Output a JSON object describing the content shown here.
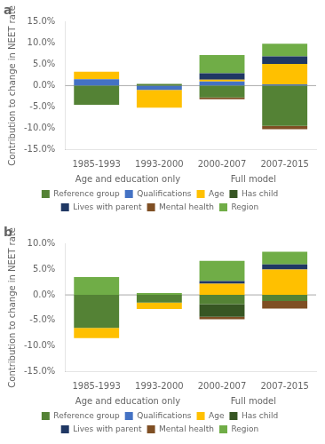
{
  "chart_data": [
    {
      "type": "bar",
      "title": "a",
      "stacked": true,
      "grid": false,
      "legend": "bottom",
      "ylabel": "Contribution to change in NEET rate",
      "categories": [
        "1985-1993",
        "1993-2000",
        "2000-2007",
        "2007-2015"
      ],
      "ylim": [
        -15.0,
        15.0
      ],
      "yticks": [
        {
          "value": -15.0,
          "label": "-15.0%"
        },
        {
          "value": -10.0,
          "label": "-10.0%"
        },
        {
          "value": -5.0,
          "label": "-5.0%"
        },
        {
          "value": 0.0,
          "label": "0.0%"
        },
        {
          "value": 5.0,
          "label": "5.0%"
        },
        {
          "value": 10.0,
          "label": "10.0%"
        },
        {
          "value": 15.0,
          "label": "15.0%"
        }
      ],
      "annotations": [
        {
          "text": "Age and education only",
          "categories": [
            "1985-1993",
            "1993-2000"
          ]
        },
        {
          "text": "Full model",
          "categories": [
            "2000-2007",
            "2007-2015"
          ]
        }
      ],
      "series": [
        {
          "name": "Reference group",
          "color": "#548235",
          "values": [
            -4.5,
            0.4,
            -2.8,
            -9.5
          ]
        },
        {
          "name": "Qualifications",
          "color": "#4472c4",
          "values": [
            1.5,
            -1.0,
            1.0,
            0.3
          ]
        },
        {
          "name": "Age",
          "color": "#ffc000",
          "values": [
            1.8,
            -4.2,
            0.4,
            4.8
          ]
        },
        {
          "name": "Has child",
          "color": "#375623",
          "values": [
            0,
            0,
            0,
            0
          ]
        },
        {
          "name": "Lives with parent",
          "color": "#203864",
          "values": [
            0,
            0,
            1.5,
            1.8
          ]
        },
        {
          "name": "Mental health",
          "color": "#7f4f24",
          "values": [
            0,
            0,
            -0.4,
            -0.8
          ]
        },
        {
          "name": "Region",
          "color": "#70ad47",
          "values": [
            0,
            0,
            4.3,
            3.0
          ]
        }
      ]
    },
    {
      "type": "bar",
      "title": "b",
      "stacked": true,
      "grid": false,
      "legend": "bottom",
      "ylabel": "Contribution to change in NEET rate",
      "categories": [
        "1985-1993",
        "1993-2000",
        "2000-2007",
        "2007-2015"
      ],
      "ylim": [
        -15.0,
        10.0
      ],
      "yticks": [
        {
          "value": -15.0,
          "label": "-15.0%"
        },
        {
          "value": -10.0,
          "label": "-10.0%"
        },
        {
          "value": -5.0,
          "label": "-5.0%"
        },
        {
          "value": 0.0,
          "label": "0.0%"
        },
        {
          "value": 5.0,
          "label": "5.0%"
        },
        {
          "value": 10.0,
          "label": "10.0%"
        }
      ],
      "annotations": [
        {
          "text": "Age and education only",
          "categories": [
            "1985-1993",
            "1993-2000"
          ]
        },
        {
          "text": "Full model",
          "categories": [
            "2000-2007",
            "2007-2015"
          ]
        }
      ],
      "series": [
        {
          "name": "Reference group",
          "color": "#548235",
          "values": [
            -6.5,
            -1.5,
            -1.8,
            -1.2
          ]
        },
        {
          "name": "Qualifications",
          "color": "#4472c4",
          "values": [
            0,
            0,
            0,
            0
          ]
        },
        {
          "name": "Age",
          "color": "#ffc000",
          "values": [
            -2.0,
            -1.3,
            2.2,
            5.0
          ]
        },
        {
          "name": "Has child",
          "color": "#375623",
          "values": [
            0,
            0,
            -2.5,
            0
          ]
        },
        {
          "name": "Lives with parent",
          "color": "#203864",
          "values": [
            0,
            0,
            0.5,
            1.0
          ]
        },
        {
          "name": "Mental health",
          "color": "#7f4f24",
          "values": [
            0,
            0,
            -0.5,
            -1.5
          ]
        },
        {
          "name": "Region",
          "color": "#70ad47",
          "values": [
            3.5,
            0.35,
            4.0,
            2.5
          ]
        }
      ]
    }
  ]
}
